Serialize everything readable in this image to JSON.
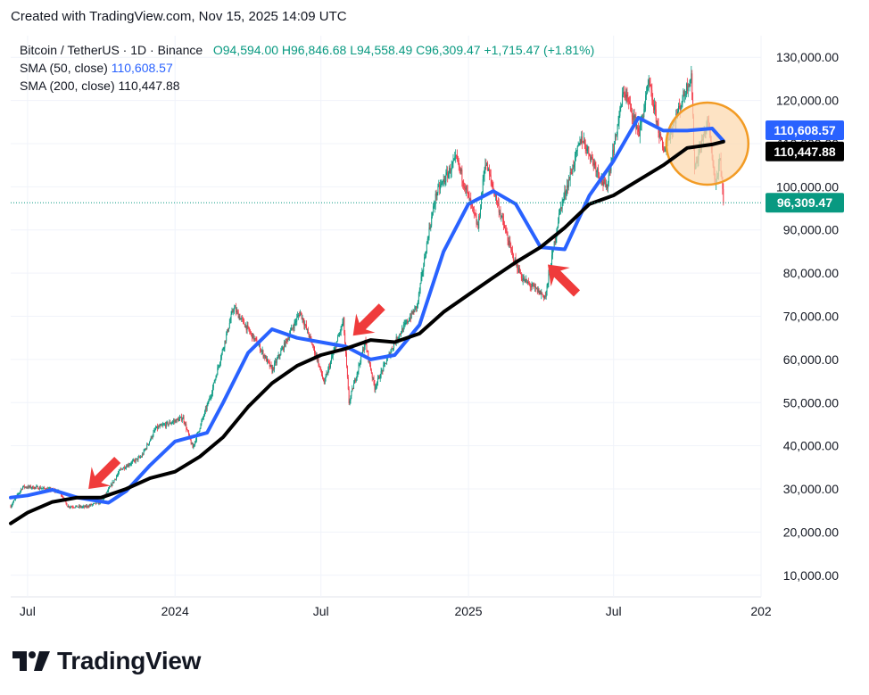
{
  "header": {
    "created_text": "Created with TradingView.com, Nov 15, 2025 14:09 UTC"
  },
  "legend": {
    "symbol": "Bitcoin / TetherUS · 1D · Binance",
    "open": "O94,594.00",
    "high": "H96,846.68",
    "low": "L94,558.49",
    "close": "C96,309.47",
    "change": "+1,715.47 (+1.81%)",
    "sma50_label": "SMA (50, close)",
    "sma50_value": "110,608.57",
    "sma200_label": "SMA (200, close)",
    "sma200_value": "110,447.88"
  },
  "brand": {
    "name": "TradingView",
    "logo_icon": "tradingview-logo-icon"
  },
  "colors": {
    "up": "#089981",
    "down": "#f23645",
    "sma50": "#2962ff",
    "sma200": "#000000",
    "arrow": "#ef3b3b",
    "circle_fill": "#fcd9b0",
    "circle_stroke": "#f29b24",
    "grid": "#f0f3fa",
    "axis_text": "#131722"
  },
  "chart_data": {
    "type": "line",
    "title": "Bitcoin / TetherUS · 1D · Binance",
    "y_axis": {
      "ticks": [
        10000,
        20000,
        30000,
        40000,
        50000,
        60000,
        70000,
        80000,
        90000,
        100000,
        110000,
        120000,
        130000
      ],
      "tick_labels": [
        "10,000.00",
        "20,000.00",
        "30,000.00",
        "40,000.00",
        "50,000.00",
        "60,000.00",
        "70,000.00",
        "80,000.00",
        "90,000.00",
        "100,000.00",
        "110,000.00",
        "120,000.00",
        "130,000.00"
      ],
      "range": [
        5000,
        135000
      ],
      "position": "right"
    },
    "x_axis": {
      "range": [
        "2023-06-10",
        "2026-01-01"
      ],
      "ticks": [
        {
          "date": "2023-07-01",
          "label": "Jul"
        },
        {
          "date": "2024-01-01",
          "label": "2024"
        },
        {
          "date": "2024-07-01",
          "label": "Jul"
        },
        {
          "date": "2025-01-01",
          "label": "2025"
        },
        {
          "date": "2025-07-01",
          "label": "Jul"
        },
        {
          "date": "2026-01-01",
          "label": "202"
        }
      ]
    },
    "price_labels": [
      {
        "value": 110608.57,
        "text": "110,608.57",
        "color": "#2962ff"
      },
      {
        "value": 110447.88,
        "text": "110,447.88",
        "color": "#000000"
      },
      {
        "value": 96309.47,
        "text": "96,309.47",
        "color": "#089981"
      }
    ],
    "last_price": 96309.47,
    "price_path": [
      [
        "2023-06-10",
        26000
      ],
      [
        "2023-06-25",
        30500
      ],
      [
        "2023-07-15",
        30300
      ],
      [
        "2023-08-10",
        29400
      ],
      [
        "2023-08-20",
        26000
      ],
      [
        "2023-09-10",
        25800
      ],
      [
        "2023-10-01",
        27000
      ],
      [
        "2023-10-25",
        34500
      ],
      [
        "2023-11-20",
        37500
      ],
      [
        "2023-12-08",
        44000
      ],
      [
        "2024-01-11",
        46500
      ],
      [
        "2024-01-23",
        39500
      ],
      [
        "2024-02-15",
        52000
      ],
      [
        "2024-03-14",
        72000
      ],
      [
        "2024-04-15",
        63000
      ],
      [
        "2024-05-01",
        57500
      ],
      [
        "2024-06-05",
        71000
      ],
      [
        "2024-06-25",
        61000
      ],
      [
        "2024-07-05",
        54500
      ],
      [
        "2024-07-29",
        69000
      ],
      [
        "2024-08-05",
        50000
      ],
      [
        "2024-08-25",
        64000
      ],
      [
        "2024-09-06",
        53500
      ],
      [
        "2024-10-01",
        64000
      ],
      [
        "2024-10-29",
        72500
      ],
      [
        "2024-11-12",
        89000
      ],
      [
        "2024-11-22",
        98500
      ],
      [
        "2024-12-17",
        106500
      ],
      [
        "2025-01-13",
        90500
      ],
      [
        "2025-01-22",
        106000
      ],
      [
        "2025-02-25",
        84000
      ],
      [
        "2025-03-10",
        78500
      ],
      [
        "2025-04-07",
        74500
      ],
      [
        "2025-04-25",
        94500
      ],
      [
        "2025-05-22",
        111500
      ],
      [
        "2025-06-22",
        99500
      ],
      [
        "2025-07-14",
        122500
      ],
      [
        "2025-08-02",
        112500
      ],
      [
        "2025-08-14",
        124000
      ],
      [
        "2025-09-01",
        108000
      ],
      [
        "2025-10-06",
        126000
      ],
      [
        "2025-10-10",
        104500
      ],
      [
        "2025-10-27",
        115500
      ],
      [
        "2025-11-05",
        100500
      ],
      [
        "2025-11-11",
        106000
      ],
      [
        "2025-11-15",
        96309
      ]
    ],
    "series": [
      {
        "name": "SMA (50, close)",
        "color": "#2962ff",
        "points": [
          [
            "2023-06-10",
            28000
          ],
          [
            "2023-07-01",
            28500
          ],
          [
            "2023-08-01",
            29800
          ],
          [
            "2023-09-01",
            28000
          ],
          [
            "2023-10-10",
            26800
          ],
          [
            "2023-11-01",
            29500
          ],
          [
            "2023-12-01",
            35500
          ],
          [
            "2024-01-01",
            41000
          ],
          [
            "2024-02-10",
            43000
          ],
          [
            "2024-03-01",
            50000
          ],
          [
            "2024-04-01",
            61500
          ],
          [
            "2024-05-01",
            67000
          ],
          [
            "2024-06-01",
            65000
          ],
          [
            "2024-07-01",
            64000
          ],
          [
            "2024-08-01",
            63000
          ],
          [
            "2024-09-01",
            60000
          ],
          [
            "2024-10-01",
            61000
          ],
          [
            "2024-11-01",
            68000
          ],
          [
            "2024-12-01",
            85000
          ],
          [
            "2025-01-01",
            96000
          ],
          [
            "2025-02-01",
            99000
          ],
          [
            "2025-03-01",
            96000
          ],
          [
            "2025-04-01",
            86000
          ],
          [
            "2025-05-01",
            85500
          ],
          [
            "2025-06-01",
            98000
          ],
          [
            "2025-07-01",
            106000
          ],
          [
            "2025-08-01",
            116000
          ],
          [
            "2025-09-01",
            113000
          ],
          [
            "2025-10-01",
            113000
          ],
          [
            "2025-11-01",
            113500
          ],
          [
            "2025-11-15",
            110608
          ]
        ]
      },
      {
        "name": "SMA (200, close)",
        "color": "#000000",
        "points": [
          [
            "2023-06-10",
            22000
          ],
          [
            "2023-07-01",
            24500
          ],
          [
            "2023-08-01",
            27000
          ],
          [
            "2023-09-01",
            28000
          ],
          [
            "2023-10-01",
            28000
          ],
          [
            "2023-11-01",
            30000
          ],
          [
            "2023-12-01",
            32500
          ],
          [
            "2024-01-01",
            34000
          ],
          [
            "2024-02-01",
            37500
          ],
          [
            "2024-03-01",
            42000
          ],
          [
            "2024-04-01",
            49000
          ],
          [
            "2024-05-01",
            54500
          ],
          [
            "2024-06-01",
            58500
          ],
          [
            "2024-07-01",
            61000
          ],
          [
            "2024-08-01",
            62500
          ],
          [
            "2024-09-01",
            64500
          ],
          [
            "2024-10-01",
            64000
          ],
          [
            "2024-11-01",
            66000
          ],
          [
            "2024-12-01",
            71000
          ],
          [
            "2025-01-01",
            75000
          ],
          [
            "2025-02-01",
            79000
          ],
          [
            "2025-03-01",
            82500
          ],
          [
            "2025-04-01",
            86000
          ],
          [
            "2025-05-01",
            90500
          ],
          [
            "2025-06-01",
            96000
          ],
          [
            "2025-07-01",
            98000
          ],
          [
            "2025-08-01",
            101500
          ],
          [
            "2025-09-01",
            105000
          ],
          [
            "2025-10-01",
            109000
          ],
          [
            "2025-11-01",
            109800
          ],
          [
            "2025-11-15",
            110447
          ]
        ]
      }
    ],
    "annotations": [
      {
        "type": "arrow",
        "name": "arrow-1",
        "target_date": "2023-09-15",
        "target_value": 30000,
        "direction": "down-left"
      },
      {
        "type": "arrow",
        "name": "arrow-2",
        "target_date": "2024-08-10",
        "target_value": 65500,
        "direction": "down-left"
      },
      {
        "type": "arrow",
        "name": "arrow-3",
        "target_date": "2025-04-10",
        "target_value": 82000,
        "direction": "up-left"
      },
      {
        "type": "circle",
        "name": "sma-cross-highlight",
        "center_date": "2025-10-26",
        "center_value": 110000
      }
    ],
    "grid": true,
    "legend_position": "top-left"
  }
}
